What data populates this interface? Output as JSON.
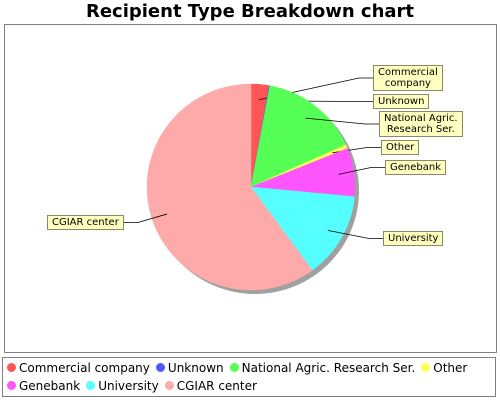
{
  "chart_data": {
    "type": "pie",
    "title": "Recipient Type Breakdown chart",
    "legend_position": "bottom",
    "slices": [
      {
        "label": "Commercial company",
        "callout": "Commercial\ncompany",
        "value": 2.8,
        "color": "#ff5555"
      },
      {
        "label": "Unknown",
        "callout": "Unknown",
        "value": 0.1,
        "color": "#5555ff"
      },
      {
        "label": "National Agric. Research Ser.",
        "callout": "National Agric.\nResearch Ser.",
        "value": 15.4,
        "color": "#55ff55"
      },
      {
        "label": "Other",
        "callout": "Other",
        "value": 0.6,
        "color": "#ffff55"
      },
      {
        "label": "Genebank",
        "callout": "Genebank",
        "value": 7.6,
        "color": "#ff55ff"
      },
      {
        "label": "University",
        "callout": "University",
        "value": 13.5,
        "color": "#55ffff"
      },
      {
        "label": "CGIAR center",
        "callout": "CGIAR center",
        "value": 60.0,
        "color": "#ffaaaa"
      }
    ]
  }
}
